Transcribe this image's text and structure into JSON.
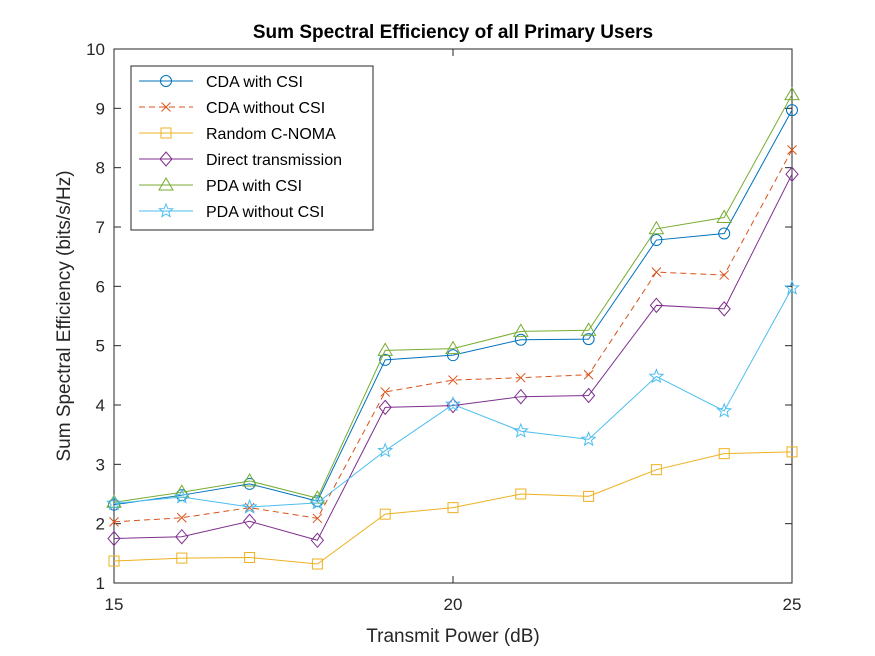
{
  "chart_data": {
    "type": "line",
    "title": "Sum Spectral Efficiency of all Primary Users",
    "xlabel": "Transmit Power (dB)",
    "ylabel": "Sum Spectral Efficiency (bits/s/Hz)",
    "xlim": [
      15,
      25
    ],
    "ylim": [
      1,
      10
    ],
    "xticks": [
      15,
      20,
      25
    ],
    "yticks": [
      1,
      2,
      3,
      4,
      5,
      6,
      7,
      8,
      9,
      10
    ],
    "grid": false,
    "legend_position": "top-left",
    "x": [
      15,
      16,
      17,
      18,
      19,
      20,
      21,
      22,
      23,
      24,
      25
    ],
    "series": [
      {
        "name": "CDA with CSI",
        "color": "#0072BD",
        "marker": "circle",
        "dash": "solid",
        "values": [
          2.32,
          2.48,
          2.67,
          2.38,
          4.76,
          4.84,
          5.1,
          5.11,
          6.78,
          6.89,
          8.97
        ]
      },
      {
        "name": "CDA without CSI",
        "color": "#D95319",
        "marker": "x",
        "dash": "dashed",
        "values": [
          2.03,
          2.1,
          2.27,
          2.09,
          4.22,
          4.42,
          4.46,
          4.51,
          6.24,
          6.19,
          8.3
        ]
      },
      {
        "name": "Random C-NOMA",
        "color": "#EDB120",
        "marker": "square",
        "dash": "solid",
        "values": [
          1.37,
          1.42,
          1.43,
          1.32,
          2.16,
          2.27,
          2.5,
          2.46,
          2.91,
          3.18,
          3.21
        ]
      },
      {
        "name": "Direct transmission",
        "color": "#7E2F8E",
        "marker": "diamond",
        "dash": "solid",
        "values": [
          1.75,
          1.78,
          2.04,
          1.72,
          3.96,
          3.99,
          4.14,
          4.16,
          5.68,
          5.62,
          7.89
        ]
      },
      {
        "name": "PDA with CSI",
        "color": "#77AC30",
        "marker": "triangle",
        "dash": "solid",
        "values": [
          2.36,
          2.53,
          2.72,
          2.43,
          4.92,
          4.95,
          5.24,
          5.26,
          6.97,
          7.16,
          9.23
        ]
      },
      {
        "name": "PDA without CSI",
        "color": "#4DBEEE",
        "marker": "star",
        "dash": "solid",
        "values": [
          2.34,
          2.45,
          2.28,
          2.35,
          3.23,
          4.01,
          3.56,
          3.42,
          4.48,
          3.9,
          5.97
        ]
      }
    ]
  }
}
